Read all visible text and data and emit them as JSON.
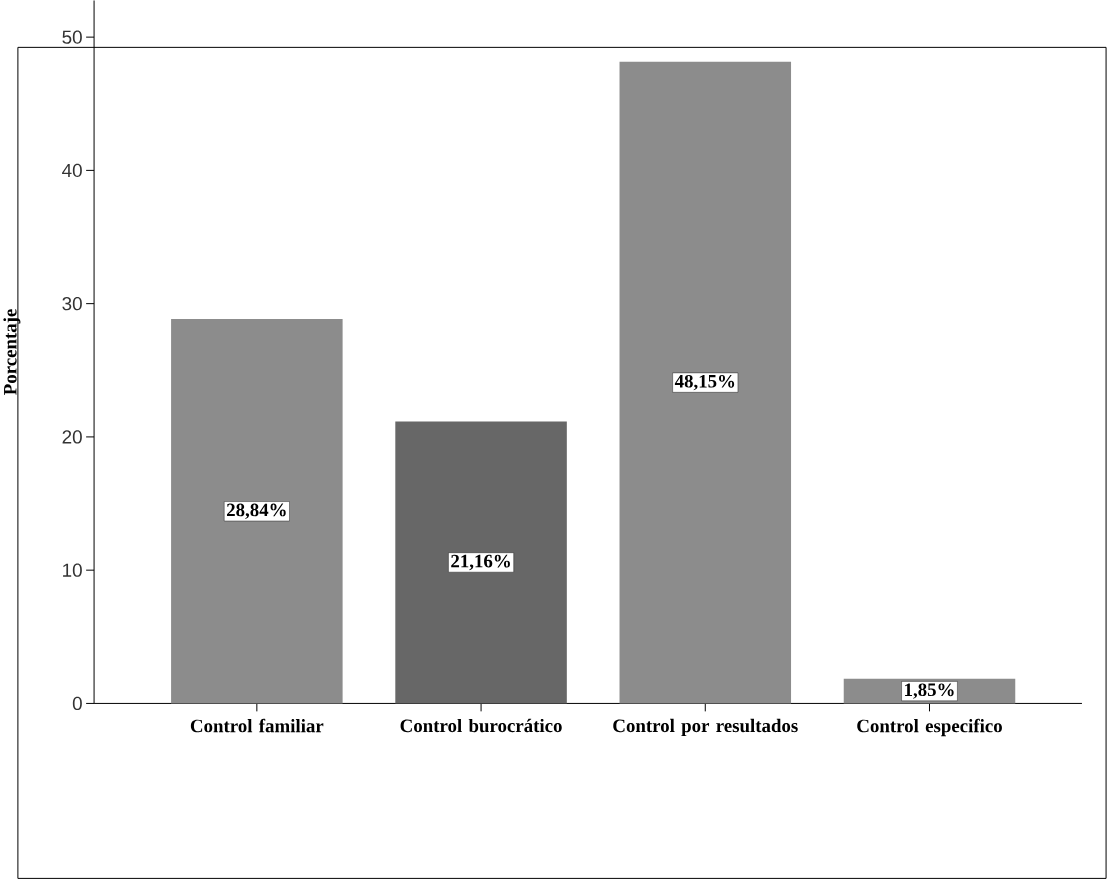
{
  "chart_data": {
    "type": "bar",
    "ylabel": "Porcentaje",
    "categories": [
      "Control familiar",
      "Control burocrático",
      "Control por resultados",
      "Control especifico"
    ],
    "values": [
      28.84,
      21.16,
      48.15,
      1.85
    ],
    "colors": [
      "#8c8c8c",
      "#676767",
      "#8c8c8c",
      "#8c8c8c"
    ],
    "value_labels": [
      "28,84%",
      "21,16%",
      "48,15%",
      "1,85%"
    ],
    "ylim": [
      0,
      52.75
    ],
    "yticks": [
      0,
      10,
      20,
      30,
      40,
      50
    ]
  }
}
